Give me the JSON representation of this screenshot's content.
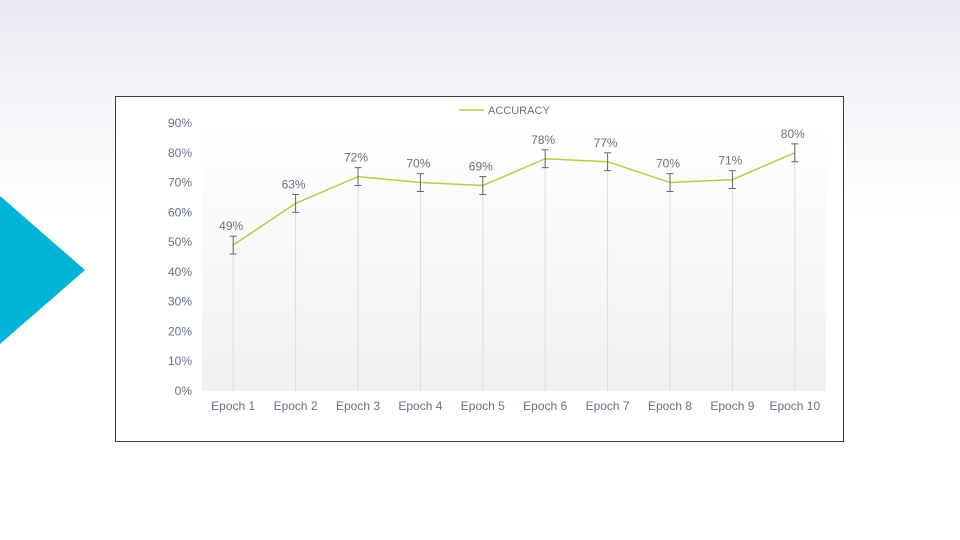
{
  "slide": {
    "accent_color": "#00b4d8"
  },
  "chart_data": {
    "type": "line",
    "categories": [
      "Epoch 1",
      "Epoch 2",
      "Epoch 3",
      "Epoch 4",
      "Epoch 5",
      "Epoch 6",
      "Epoch 7",
      "Epoch 8",
      "Epoch 9",
      "Epoch 10"
    ],
    "series": [
      {
        "name": "ACCURACY",
        "values": [
          49,
          63,
          72,
          70,
          69,
          78,
          77,
          70,
          71,
          80
        ],
        "labels": [
          "49%",
          "63%",
          "72%",
          "70%",
          "69%",
          "78%",
          "77%",
          "70%",
          "71%",
          "80%"
        ],
        "error": [
          3,
          3,
          3,
          3,
          3,
          3,
          3,
          3,
          3,
          3
        ],
        "color": "#b5cf49"
      }
    ],
    "y_ticks": [
      "0%",
      "10%",
      "20%",
      "30%",
      "40%",
      "50%",
      "60%",
      "70%",
      "80%",
      "90%"
    ],
    "ylim": [
      0,
      90
    ],
    "legend": "top-center",
    "grid": "vertical drop lines",
    "error_bar_color": "#666666",
    "drop_line_color": "#dcdcdc"
  }
}
